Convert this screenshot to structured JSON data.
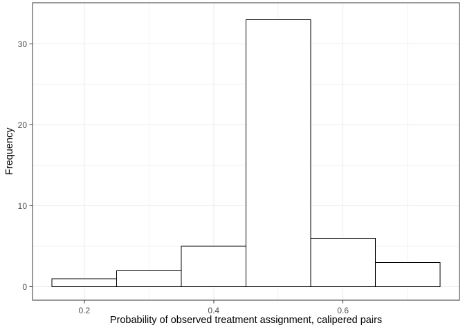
{
  "chart_data": {
    "type": "bar",
    "chart_kind": "histogram",
    "title": "",
    "xlabel": "Probability of observed treatment assignment, calipered pairs",
    "ylabel": "Frequency",
    "bin_edges": [
      0.15,
      0.25,
      0.35,
      0.45,
      0.55,
      0.65,
      0.75
    ],
    "counts": [
      1,
      2,
      5,
      33,
      6,
      3
    ],
    "x_ticks": {
      "values": [
        0.2,
        0.4,
        0.6
      ],
      "labels": [
        "0.2",
        "0.4",
        "0.6"
      ]
    },
    "y_ticks": {
      "values": [
        0,
        10,
        20,
        30
      ],
      "labels": [
        "0",
        "10",
        "20",
        "30"
      ]
    },
    "x_minor_ticks": [
      0.3,
      0.5,
      0.7
    ],
    "y_minor_ticks": [
      5,
      15,
      25
    ],
    "xlim": [
      0.12,
      0.78
    ],
    "ylim": [
      -1.65,
      35.1
    ],
    "grid": "major+minor",
    "legend": null,
    "colors": {
      "background": "#ffffff",
      "panel_background": "#ffffff",
      "panel_border": "#333333",
      "grid_major": "#ebebeb",
      "grid_minor": "#f2f2f2",
      "bar_fill": "#ffffff",
      "bar_stroke": "#000000",
      "tick_mark": "#333333",
      "tick_label": "#4d4d4d",
      "axis_title": "#000000"
    }
  }
}
